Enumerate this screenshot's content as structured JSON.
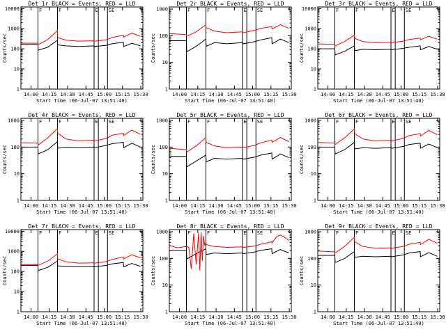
{
  "colors": {
    "events": "#000000",
    "lld": "#ff0000",
    "background": "#ffffff"
  },
  "chart_data": [
    {
      "type": "line",
      "title": "Det 1r BLACK = Events, RED = LLD",
      "xlabel": "Start Time (06-Jul-07 13:51:40)",
      "ylabel": "Counts/sec",
      "x_ticks": [
        "14:00",
        "14:15",
        "14:30",
        "14:45",
        "15:00",
        "15:15",
        "15:30"
      ],
      "y_ticks": [
        "1",
        "10",
        "100",
        "1000",
        "10000"
      ],
      "yscale": "log",
      "ylim": [
        1,
        12000
      ],
      "series": [
        {
          "color": "#000000",
          "x": [
            0,
            14,
            14.2,
            22,
            30,
            30.2,
            37,
            47,
            60,
            60.5,
            70,
            75,
            84,
            84.2,
            91,
            98
          ],
          "values": [
            170,
            170,
            85,
            120,
            270,
            155,
            140,
            130,
            140,
            130,
            150,
            180,
            210,
            130,
            190,
            140
          ]
        },
        {
          "color": "#ff0000",
          "x": [
            0,
            14,
            14.2,
            22,
            30,
            30.2,
            37,
            47,
            60,
            60.5,
            70,
            75,
            84,
            84.2,
            91,
            98
          ],
          "values": [
            190,
            190,
            160,
            290,
            800,
            360,
            270,
            240,
            250,
            240,
            280,
            370,
            470,
            380,
            600,
            420
          ]
        }
      ],
      "markers": [
        {
          "x": 14,
          "label": "F"
        },
        {
          "x": 30,
          "label": "F"
        },
        {
          "x": 60,
          "label": "E"
        },
        {
          "x": 63.5,
          "label": ""
        },
        {
          "x": 71,
          "label": "SE"
        }
      ]
    },
    {
      "type": "line",
      "title": "Det 2r BLACK = Events, RED = LLD",
      "xlabel": "Start Time (06-Jul-07 13:51:40)",
      "ylabel": "Counts/sec",
      "x_ticks": [
        "14:00",
        "14:15",
        "14:30",
        "14:45",
        "15:00",
        "15:15",
        "15:30"
      ],
      "y_ticks": [
        "1",
        "10",
        "100",
        "1000"
      ],
      "yscale": "log",
      "ylim": [
        1,
        1200
      ],
      "series": [
        {
          "color": "#000000",
          "x": [
            0,
            14,
            14.2,
            22,
            30,
            30.2,
            37,
            47,
            60,
            60.5,
            70,
            75,
            84,
            84.2,
            91,
            98
          ],
          "values": [
            65,
            65,
            25,
            40,
            75,
            40,
            55,
            50,
            55,
            50,
            60,
            70,
            85,
            50,
            75,
            55
          ]
        },
        {
          "color": "#ff0000",
          "x": [
            0,
            14,
            14.2,
            22,
            30,
            30.2,
            37,
            47,
            60,
            60.5,
            70,
            75,
            84,
            84.2,
            91,
            98
          ],
          "values": [
            120,
            110,
            95,
            140,
            260,
            200,
            150,
            130,
            140,
            130,
            160,
            190,
            220,
            180,
            260,
            190
          ]
        }
      ],
      "markers": [
        {
          "x": 14,
          "label": "F"
        },
        {
          "x": 30,
          "label": "F"
        },
        {
          "x": 60,
          "label": "E"
        },
        {
          "x": 63.5,
          "label": ""
        },
        {
          "x": 71,
          "label": "SE"
        }
      ]
    },
    {
      "type": "line",
      "title": "Det 3r BLACK = Events, RED = LLD",
      "xlabel": "Start Time (06-Jul-07 13:51:40)",
      "ylabel": "Counts/sec",
      "x_ticks": [
        "14:00",
        "14:15",
        "14:30",
        "14:45",
        "15:00",
        "15:15",
        "15:30"
      ],
      "y_ticks": [
        "1",
        "10",
        "100",
        "1000",
        "10000"
      ],
      "yscale": "log",
      "ylim": [
        1,
        12000
      ],
      "series": [
        {
          "color": "#000000",
          "x": [
            0,
            14,
            14.2,
            22,
            30,
            30.2,
            37,
            47,
            60,
            60.5,
            70,
            75,
            84,
            84.2,
            91,
            98
          ],
          "values": [
            100,
            100,
            50,
            75,
            140,
            80,
            95,
            90,
            95,
            90,
            105,
            120,
            140,
            90,
            130,
            95
          ]
        },
        {
          "color": "#ff0000",
          "x": [
            0,
            14,
            14.2,
            22,
            30,
            30.2,
            37,
            47,
            60,
            60.5,
            70,
            75,
            84,
            84.2,
            91,
            98
          ],
          "values": [
            175,
            165,
            140,
            230,
            480,
            330,
            230,
            200,
            210,
            200,
            240,
            290,
            340,
            280,
            420,
            300
          ]
        }
      ],
      "markers": [
        {
          "x": 14,
          "label": "F"
        },
        {
          "x": 30,
          "label": "F"
        },
        {
          "x": 60,
          "label": "E"
        },
        {
          "x": 63.5,
          "label": ""
        },
        {
          "x": 71,
          "label": "SE"
        }
      ]
    },
    {
      "type": "line",
      "title": "Det 4r BLACK = Events, RED = LLD",
      "xlabel": "Start Time (06-Jul-07 13:51:40)",
      "ylabel": "Counts/sec",
      "x_ticks": [
        "14:00",
        "14:15",
        "14:30",
        "14:45",
        "15:00",
        "15:15",
        "15:30"
      ],
      "y_ticks": [
        "1",
        "10",
        "100",
        "1000"
      ],
      "yscale": "log",
      "ylim": [
        1,
        1200
      ],
      "series": [
        {
          "color": "#000000",
          "x": [
            0,
            14,
            14.2,
            22,
            30,
            30.2,
            37,
            47,
            60,
            60.5,
            70,
            75,
            84,
            84.2,
            91,
            98
          ],
          "values": [
            100,
            100,
            55,
            80,
            160,
            90,
            100,
            95,
            100,
            95,
            115,
            135,
            150,
            95,
            140,
            100
          ]
        },
        {
          "color": "#ff0000",
          "x": [
            0,
            14,
            14.2,
            22,
            30,
            30.2,
            37,
            47,
            60,
            60.5,
            70,
            75,
            84,
            84.2,
            91,
            98
          ],
          "values": [
            145,
            140,
            120,
            220,
            500,
            330,
            200,
            170,
            180,
            170,
            210,
            280,
            330,
            270,
            430,
            300
          ]
        }
      ],
      "markers": [
        {
          "x": 14,
          "label": "F"
        },
        {
          "x": 30,
          "label": "F"
        },
        {
          "x": 60,
          "label": "E"
        },
        {
          "x": 63.5,
          "label": ""
        },
        {
          "x": 71,
          "label": "SE"
        }
      ]
    },
    {
      "type": "line",
      "title": "Det 5r BLACK = Events, RED = LLD",
      "xlabel": "Start Time (06-Jul-07 13:51:40)",
      "ylabel": "Counts/sec",
      "x_ticks": [
        "14:00",
        "14:15",
        "14:30",
        "14:45",
        "15:00",
        "15:15",
        "15:30"
      ],
      "y_ticks": [
        "1",
        "10",
        "100",
        "1000"
      ],
      "yscale": "log",
      "ylim": [
        1,
        1200
      ],
      "series": [
        {
          "color": "#000000",
          "x": [
            0,
            14,
            14.2,
            22,
            30,
            30.2,
            37,
            47,
            60,
            60.5,
            70,
            75,
            84,
            84.2,
            91,
            98
          ],
          "values": [
            45,
            45,
            18,
            30,
            50,
            28,
            38,
            35,
            38,
            35,
            42,
            50,
            60,
            35,
            55,
            40
          ]
        },
        {
          "color": "#ff0000",
          "x": [
            0,
            14,
            14.2,
            22,
            30,
            30.2,
            37,
            47,
            60,
            60.5,
            70,
            75,
            84,
            84.2,
            91,
            98
          ],
          "values": [
            90,
            80,
            65,
            110,
            230,
            150,
            110,
            95,
            100,
            95,
            115,
            145,
            180,
            150,
            230,
            160
          ]
        }
      ],
      "markers": [
        {
          "x": 14,
          "label": "F"
        },
        {
          "x": 30,
          "label": "F"
        },
        {
          "x": 60,
          "label": "E"
        },
        {
          "x": 63.5,
          "label": ""
        },
        {
          "x": 71,
          "label": "SE"
        }
      ]
    },
    {
      "type": "line",
      "title": "Det 6r BLACK = Events, RED = LLD",
      "xlabel": "Start Time (06-Jul-07 13:51:40)",
      "ylabel": "Counts/sec",
      "x_ticks": [
        "14:00",
        "14:15",
        "14:30",
        "14:45",
        "15:00",
        "15:15",
        "15:30"
      ],
      "y_ticks": [
        "1",
        "10",
        "100",
        "1000"
      ],
      "yscale": "log",
      "ylim": [
        1,
        1200
      ],
      "series": [
        {
          "color": "#000000",
          "x": [
            0,
            14,
            14.2,
            22,
            30,
            30.2,
            37,
            47,
            60,
            60.5,
            70,
            75,
            84,
            84.2,
            91,
            98
          ],
          "values": [
            100,
            100,
            55,
            80,
            150,
            85,
            95,
            90,
            95,
            90,
            105,
            125,
            140,
            90,
            130,
            95
          ]
        },
        {
          "color": "#ff0000",
          "x": [
            0,
            14,
            14.2,
            22,
            30,
            30.2,
            37,
            47,
            60,
            60.5,
            70,
            75,
            84,
            84.2,
            91,
            98
          ],
          "values": [
            150,
            140,
            125,
            220,
            480,
            320,
            200,
            170,
            180,
            170,
            210,
            270,
            320,
            260,
            420,
            290
          ]
        }
      ],
      "markers": [
        {
          "x": 14,
          "label": "F"
        },
        {
          "x": 30,
          "label": "F"
        },
        {
          "x": 60,
          "label": "E"
        },
        {
          "x": 63.5,
          "label": ""
        },
        {
          "x": 71,
          "label": "SE"
        }
      ]
    },
    {
      "type": "line",
      "title": "Det 7r BLACK = Events, RED = LLD",
      "xlabel": "Start Time (06-Jul-07 13:51:40)",
      "ylabel": "Counts/sec",
      "x_ticks": [
        "14:00",
        "14:15",
        "14:30",
        "14:45",
        "15:00",
        "15:15",
        "15:30"
      ],
      "y_ticks": [
        "1",
        "10",
        "100",
        "1000",
        "10000"
      ],
      "yscale": "log",
      "ylim": [
        1,
        12000
      ],
      "series": [
        {
          "color": "#000000",
          "x": [
            0,
            14,
            14.2,
            22,
            30,
            30.2,
            37,
            47,
            60,
            60.5,
            70,
            75,
            84,
            84.2,
            91,
            98
          ],
          "values": [
            200,
            200,
            110,
            160,
            330,
            190,
            180,
            170,
            180,
            170,
            200,
            240,
            280,
            170,
            250,
            180
          ]
        },
        {
          "color": "#ff0000",
          "x": [
            0,
            14,
            14.2,
            22,
            30,
            30.2,
            37,
            47,
            60,
            60.5,
            70,
            75,
            84,
            84.2,
            91,
            98
          ],
          "values": [
            220,
            215,
            200,
            330,
            750,
            420,
            300,
            260,
            270,
            260,
            310,
            400,
            520,
            420,
            680,
            470
          ]
        }
      ],
      "markers": [
        {
          "x": 14,
          "label": "F"
        },
        {
          "x": 30,
          "label": "F"
        },
        {
          "x": 60,
          "label": "E"
        },
        {
          "x": 63.5,
          "label": ""
        },
        {
          "x": 71,
          "label": "SE"
        }
      ]
    },
    {
      "type": "line",
      "title": "Det 8r BLACK = Events, RED = LLD",
      "xlabel": "Start Time (06-Jul-07 13:51:40)",
      "ylabel": "Counts/sec",
      "x_ticks": [
        "14:00",
        "14:15",
        "14:30",
        "14:45",
        "15:00",
        "15:15",
        "15:30"
      ],
      "y_ticks": [
        "1",
        "10",
        "100",
        "1000"
      ],
      "yscale": "log",
      "ylim": [
        1,
        1200
      ],
      "series": [
        {
          "color": "#000000",
          "x": [
            0,
            14,
            14.2,
            22,
            30,
            30.2,
            37,
            47,
            60,
            60.5,
            70,
            75,
            84,
            84.2,
            91,
            98
          ],
          "values": [
            200,
            200,
            95,
            150,
            230,
            140,
            160,
            150,
            160,
            150,
            175,
            200,
            230,
            150,
            215,
            160
          ]
        },
        {
          "color": "#ff0000",
          "x": [
            0,
            3,
            6,
            9,
            12,
            14,
            16,
            18,
            20,
            22,
            24,
            25,
            26,
            27,
            28,
            29,
            30,
            30.2,
            37,
            47,
            60,
            60.5,
            70,
            75,
            84,
            84.2,
            88,
            91,
            95,
            98
          ],
          "values": [
            300,
            280,
            250,
            260,
            270,
            280,
            260,
            40,
            850,
            60,
            900,
            35,
            950,
            80,
            700,
            300,
            420,
            330,
            280,
            260,
            270,
            260,
            290,
            340,
            420,
            380,
            650,
            750,
            600,
            470
          ]
        }
      ],
      "markers": [
        {
          "x": 14,
          "label": "F"
        },
        {
          "x": 30,
          "label": "F"
        },
        {
          "x": 60,
          "label": "E"
        },
        {
          "x": 63.5,
          "label": ""
        },
        {
          "x": 71,
          "label": "SE"
        }
      ]
    },
    {
      "type": "line",
      "title": "Det 9r BLACK = Events, RED = LLD",
      "xlabel": "Start Time (06-Jul-07 13:51:40)",
      "ylabel": "Counts/sec",
      "x_ticks": [
        "14:00",
        "14:15",
        "14:30",
        "14:45",
        "15:00",
        "15:15",
        "15:30"
      ],
      "y_ticks": [
        "1",
        "10",
        "100",
        "1000"
      ],
      "yscale": "log",
      "ylim": [
        1,
        1200
      ],
      "series": [
        {
          "color": "#000000",
          "x": [
            0,
            14,
            14.2,
            22,
            30,
            30.2,
            37,
            47,
            60,
            60.5,
            70,
            75,
            84,
            84.2,
            91,
            98
          ],
          "values": [
            130,
            130,
            70,
            100,
            180,
            110,
            120,
            115,
            120,
            115,
            135,
            160,
            180,
            115,
            165,
            120
          ]
        },
        {
          "color": "#ff0000",
          "x": [
            0,
            14,
            14.2,
            22,
            30,
            30.2,
            37,
            47,
            60,
            60.5,
            70,
            75,
            84,
            84.2,
            91,
            98
          ],
          "values": [
            190,
            175,
            160,
            280,
            620,
            420,
            280,
            240,
            250,
            240,
            280,
            340,
            400,
            330,
            520,
            370
          ]
        }
      ],
      "markers": [
        {
          "x": 14,
          "label": "F"
        },
        {
          "x": 30,
          "label": "F"
        },
        {
          "x": 60,
          "label": "E"
        },
        {
          "x": 63.5,
          "label": ""
        },
        {
          "x": 71,
          "label": "SE"
        }
      ]
    }
  ]
}
